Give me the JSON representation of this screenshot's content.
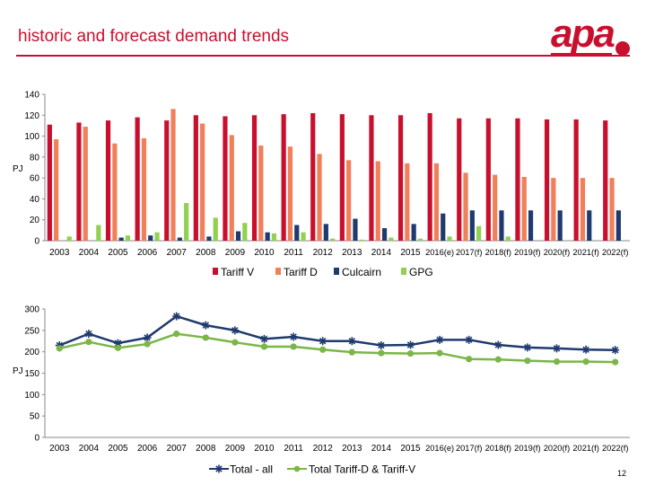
{
  "header": {
    "title": "historic and forecast demand trends",
    "page_number": "12"
  },
  "logo": {
    "text": "apa",
    "color": "#c8102e",
    "dot_color": "#c8102e"
  },
  "chart_data": [
    {
      "type": "bar",
      "ylabel": "PJ",
      "ylim": [
        0,
        140
      ],
      "yticks": [
        0,
        20,
        40,
        60,
        80,
        100,
        120,
        140
      ],
      "categories": [
        "2003",
        "2004",
        "2005",
        "2006",
        "2007",
        "2008",
        "2009",
        "2010",
        "2011",
        "2012",
        "2013",
        "2014",
        "2015",
        "2016(e)",
        "2017(f)",
        "2018(f)",
        "2019(f)",
        "2020(f)",
        "2021(f)",
        "2022(f)"
      ],
      "legend_position": "bottom",
      "series": [
        {
          "name": "Tariff V",
          "color": "#c8102e",
          "values": [
            111,
            113,
            115,
            118,
            115,
            120,
            119,
            120,
            121,
            122,
            121,
            120,
            120,
            122,
            117,
            117,
            117,
            116,
            116,
            115
          ]
        },
        {
          "name": "Tariff D",
          "color": "#f07f5a",
          "values": [
            97,
            109,
            93,
            98,
            126,
            112,
            101,
            91,
            90,
            83,
            77,
            76,
            74,
            74,
            65,
            63,
            61,
            60,
            60,
            60
          ]
        },
        {
          "name": "Culcairn",
          "color": "#1f3a6e",
          "values": [
            0,
            0,
            3,
            5,
            3,
            4,
            9,
            8,
            15,
            16,
            21,
            12,
            16,
            26,
            29,
            29,
            29,
            29,
            29,
            29
          ]
        },
        {
          "name": "GPG",
          "color": "#92d050",
          "values": [
            4,
            15,
            5,
            8,
            36,
            22,
            17,
            7,
            8,
            2,
            1,
            3,
            2,
            4,
            14,
            4,
            0,
            0,
            0,
            0
          ]
        }
      ]
    },
    {
      "type": "line",
      "ylabel": "PJ",
      "ylim": [
        0,
        300
      ],
      "yticks": [
        0,
        50,
        100,
        150,
        200,
        250,
        300
      ],
      "categories": [
        "2003",
        "2004",
        "2005",
        "2006",
        "2007",
        "2008",
        "2009",
        "2010",
        "2011",
        "2012",
        "2013",
        "2014",
        "2015",
        "2016(e)",
        "2017(f)",
        "2018(f)",
        "2019(f)",
        "2020(f)",
        "2021(f)",
        "2022(f)"
      ],
      "legend_position": "bottom",
      "series": [
        {
          "name": "Total - all",
          "color": "#1f3a6e",
          "marker": "star",
          "values": [
            215,
            242,
            220,
            233,
            283,
            262,
            250,
            230,
            235,
            225,
            225,
            215,
            216,
            228,
            228,
            216,
            210,
            208,
            205,
            204
          ]
        },
        {
          "name": "Total Tariff-D & Tariff-V",
          "color": "#7ab648",
          "marker": "circle",
          "values": [
            208,
            223,
            209,
            218,
            242,
            233,
            222,
            212,
            212,
            205,
            199,
            197,
            196,
            197,
            183,
            182,
            179,
            177,
            177,
            176
          ]
        }
      ]
    }
  ]
}
